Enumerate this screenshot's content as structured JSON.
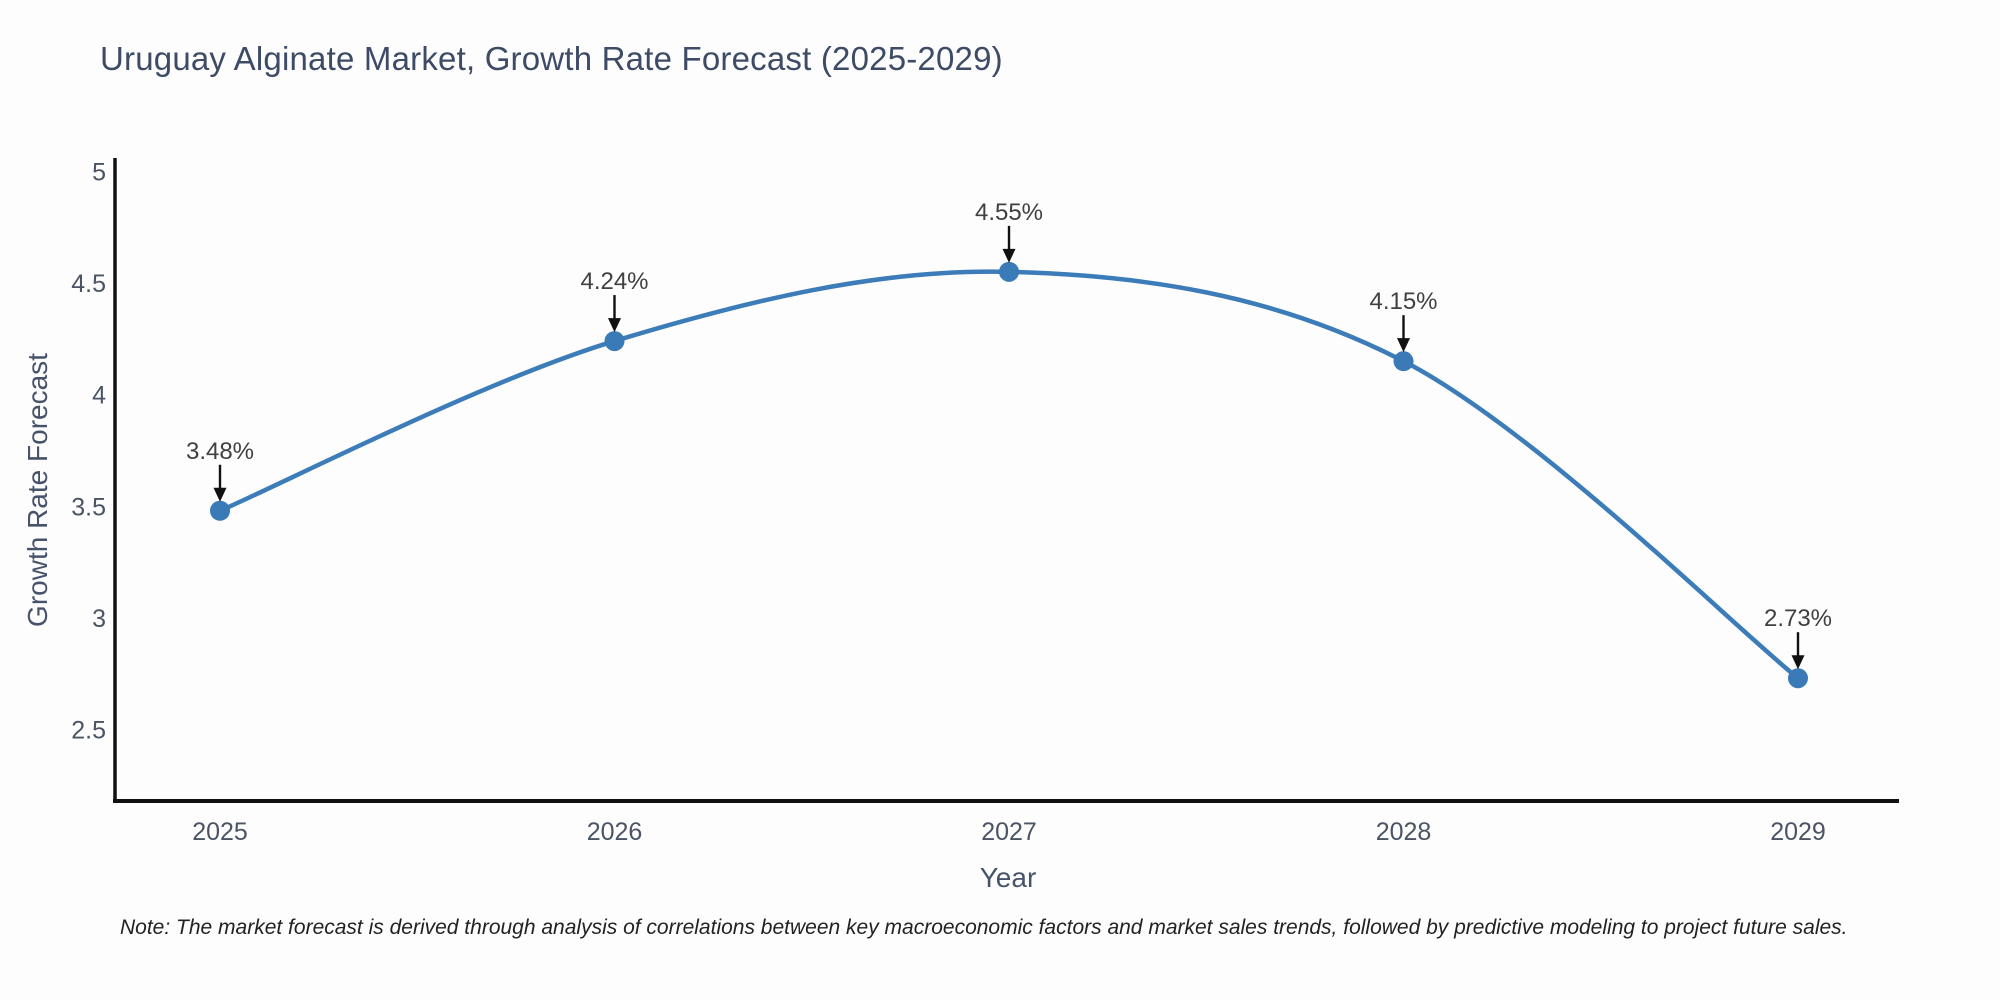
{
  "chart_data": {
    "type": "line",
    "title": "Uruguay Alginate Market, Growth Rate Forecast (2025-2029)",
    "xlabel": "Year",
    "ylabel": "Growth Rate Forecast",
    "categories": [
      2025,
      2026,
      2027,
      2028,
      2029
    ],
    "values": [
      3.48,
      4.24,
      4.55,
      4.15,
      2.73
    ],
    "point_labels": [
      "3.48%",
      "4.24%",
      "4.55%",
      "4.15%",
      "2.73%"
    ],
    "y_ticks": [
      5,
      4.5,
      4,
      3.5,
      3,
      2.5
    ],
    "y_tick_labels": [
      "5",
      "4.5",
      "4",
      "3.5",
      "3",
      "2.5"
    ],
    "x_tick_labels": [
      "2025",
      "2026",
      "2027",
      "2028",
      "2029"
    ],
    "ylim": [
      2.18,
      5.06
    ],
    "grid": false,
    "legend_position": "none",
    "line_style": "spline",
    "note": "Note: The market forecast is derived through analysis of correlations between key macroeconomic factors and market sales trends, followed by predictive modeling to project future sales."
  },
  "colors": {
    "line": "#3c7cb8",
    "marker": "#3a7ab6",
    "axis": "#111111",
    "tick_label": "#4a5464",
    "annotation_text": "#404040",
    "annotation_arrow": "#111111",
    "title": "#3e4b66",
    "axis_title": "#47536b",
    "note_text": "#222222",
    "background": "#fdfdfd"
  }
}
